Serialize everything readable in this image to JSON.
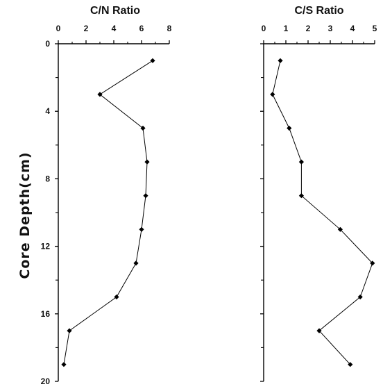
{
  "chart_data": {
    "type": "line",
    "ylabel": "Core Depth(cm)",
    "ylim": [
      0,
      20
    ],
    "y_ticks": [
      0,
      4,
      8,
      12,
      16,
      20
    ],
    "y_inverted": true,
    "x_axis_position": "top",
    "marker": "diamond",
    "panels": [
      {
        "title": "C/N Ratio",
        "xlim": [
          0,
          8
        ],
        "x_ticks": [
          0,
          2,
          4,
          6,
          8
        ],
        "series": [
          {
            "points": [
              {
                "x": 6.8,
                "y": 1
              },
              {
                "x": 3.0,
                "y": 3
              },
              {
                "x": 6.1,
                "y": 5
              },
              {
                "x": 6.4,
                "y": 7
              },
              {
                "x": 6.3,
                "y": 9
              },
              {
                "x": 6.0,
                "y": 11
              },
              {
                "x": 5.6,
                "y": 13
              },
              {
                "x": 4.2,
                "y": 15
              },
              {
                "x": 0.8,
                "y": 17
              },
              {
                "x": 0.4,
                "y": 19
              }
            ]
          }
        ]
      },
      {
        "title": "C/S Ratio",
        "xlim": [
          0,
          5
        ],
        "x_ticks": [
          0,
          1,
          2,
          3,
          4,
          5
        ],
        "series": [
          {
            "points": [
              {
                "x": 0.75,
                "y": 1
              },
              {
                "x": 0.4,
                "y": 3
              },
              {
                "x": 1.15,
                "y": 5
              },
              {
                "x": 1.7,
                "y": 7
              },
              {
                "x": 1.7,
                "y": 9
              },
              {
                "x": 3.45,
                "y": 11
              },
              {
                "x": 4.9,
                "y": 13
              },
              {
                "x": 4.35,
                "y": 15
              },
              {
                "x": 2.5,
                "y": 17
              },
              {
                "x": 3.9,
                "y": 19
              }
            ]
          }
        ]
      }
    ]
  }
}
